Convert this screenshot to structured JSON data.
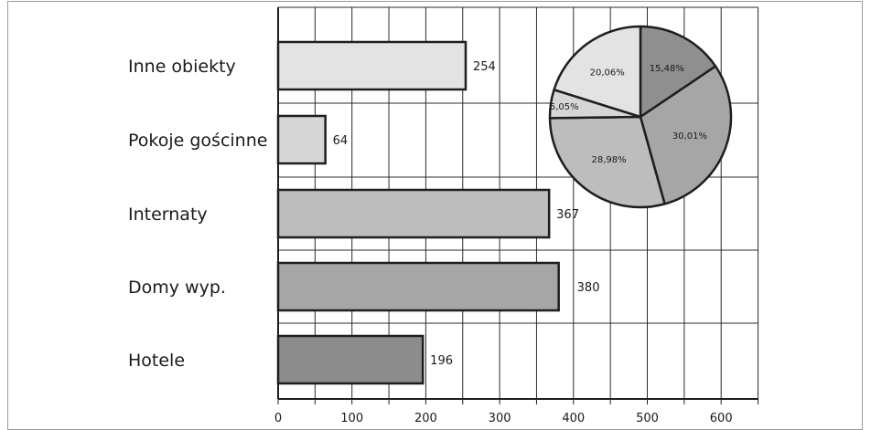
{
  "chart_data": [
    {
      "type": "bar",
      "orientation": "horizontal",
      "categories": [
        "Inne obiekty",
        "Pokoje gościnne",
        "Internaty",
        "Domy wyp.",
        "Hotele"
      ],
      "values": [
        254,
        64,
        367,
        380,
        196
      ],
      "value_labels": [
        "254",
        "64",
        "367",
        "380",
        "196"
      ],
      "colors": [
        "#e3e3e3",
        "#d6d6d6",
        "#bdbdbd",
        "#a6a6a6",
        "#8c8c8c"
      ],
      "xlim": [
        0,
        650
      ],
      "xticks": [
        0,
        100,
        200,
        300,
        400,
        500,
        600
      ],
      "tick_labels": [
        "0",
        "100",
        "200",
        "300",
        "400",
        "500",
        "600"
      ],
      "grid": "vertical every 50",
      "title": "",
      "xlabel": "",
      "ylabel": ""
    },
    {
      "type": "pie",
      "slices": [
        {
          "label": "15,48%",
          "value": 15.48,
          "color": "#8f8f8f"
        },
        {
          "label": "30,01%",
          "value": 30.01,
          "color": "#a6a6a6"
        },
        {
          "label": "28,98%",
          "value": 28.98,
          "color": "#bdbdbd"
        },
        {
          "label": "5,05%",
          "value": 5.05,
          "color": "#d6d6d6"
        },
        {
          "label": "20,06%",
          "value": 20.06,
          "color": "#e3e3e3"
        }
      ],
      "start": "top",
      "direction": "clockwise"
    }
  ]
}
